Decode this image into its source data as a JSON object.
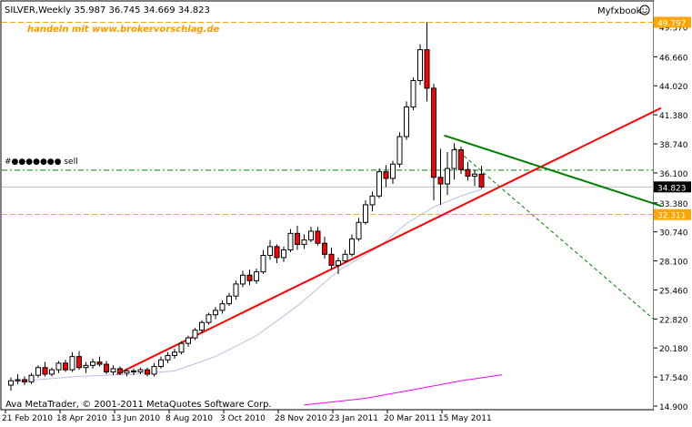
{
  "header": {
    "title": "SILVER,Weekly  35.987 36.745 34.669 34.823",
    "brand": "Myfxbook",
    "watermark": "handeln mit www.brokervorschlag.de",
    "footer": "Ava MetaTrader, © 2001-2011 MetaQuotes Software Corp."
  },
  "chart_data": {
    "type": "candlestick",
    "symbol": "SILVER",
    "timeframe": "Weekly",
    "ohlc_last": {
      "open": 35.987,
      "high": 36.745,
      "low": 34.669,
      "close": 34.823
    },
    "y_ticks": [
      "49.370",
      "46.660",
      "44.020",
      "41.380",
      "38.740",
      "36.100",
      "33.380",
      "30.740",
      "28.100",
      "25.460",
      "22.820",
      "20.180",
      "17.540",
      "14.900"
    ],
    "x_labels": [
      "21 Feb 2010",
      "18 Apr 2010",
      "13 Jun 2010",
      "8 Aug 2010",
      "3 Oct 2010",
      "28 Nov 2010",
      "23 Jan 2011",
      "20 Mar 2011",
      "15 May 2011"
    ],
    "ylim": [
      14.9,
      50.0
    ],
    "price_labels": [
      {
        "value": 49.797,
        "label": "49.797",
        "color": "#ffa500"
      },
      {
        "value": 34.823,
        "label": "34.823",
        "color": "#000000"
      },
      {
        "value": 32.311,
        "label": "32.311",
        "color": "#ffa500"
      }
    ],
    "order_label": "#●●●●●●● sell",
    "candles": [
      [
        0,
        16.8,
        17.5,
        16.3,
        17.2
      ],
      [
        1,
        17.2,
        17.8,
        16.9,
        17.3
      ],
      [
        2,
        17.3,
        17.6,
        16.8,
        17.1
      ],
      [
        3,
        17.1,
        17.9,
        16.9,
        17.7
      ],
      [
        4,
        17.7,
        18.6,
        17.5,
        18.4
      ],
      [
        5,
        18.4,
        18.9,
        17.6,
        17.8
      ],
      [
        6,
        17.8,
        18.4,
        17.6,
        18.2
      ],
      [
        7,
        18.2,
        19.0,
        17.9,
        18.8
      ],
      [
        8,
        18.8,
        19.1,
        18.0,
        18.2
      ],
      [
        9,
        18.2,
        19.8,
        18.0,
        19.4
      ],
      [
        10,
        19.4,
        19.9,
        18.2,
        18.4
      ],
      [
        11,
        18.4,
        18.9,
        17.9,
        18.6
      ],
      [
        12,
        18.6,
        19.2,
        18.3,
        18.9
      ],
      [
        13,
        18.9,
        19.4,
        18.5,
        18.7
      ],
      [
        14,
        18.7,
        19.0,
        17.8,
        18.0
      ],
      [
        15,
        18.0,
        18.6,
        17.7,
        18.3
      ],
      [
        16,
        18.3,
        18.5,
        17.7,
        17.9
      ],
      [
        17,
        17.9,
        18.3,
        17.6,
        18.1
      ],
      [
        18,
        18.1,
        18.3,
        17.7,
        18.0
      ],
      [
        19,
        18.0,
        18.4,
        17.8,
        18.2
      ],
      [
        20,
        18.2,
        18.4,
        17.6,
        17.8
      ],
      [
        21,
        17.8,
        18.8,
        17.6,
        18.5
      ],
      [
        22,
        18.5,
        19.4,
        18.3,
        19.1
      ],
      [
        23,
        19.1,
        19.8,
        18.8,
        19.5
      ],
      [
        24,
        19.5,
        20.1,
        19.2,
        19.8
      ],
      [
        25,
        19.8,
        20.8,
        19.6,
        20.6
      ],
      [
        26,
        20.6,
        21.3,
        20.3,
        21.1
      ],
      [
        27,
        21.1,
        22.0,
        20.9,
        21.8
      ],
      [
        28,
        21.8,
        22.7,
        21.5,
        22.5
      ],
      [
        29,
        22.5,
        23.4,
        22.3,
        23.2
      ],
      [
        30,
        23.2,
        23.9,
        22.8,
        23.6
      ],
      [
        31,
        23.6,
        24.5,
        23.3,
        24.2
      ],
      [
        32,
        24.2,
        25.2,
        24.0,
        24.9
      ],
      [
        33,
        24.9,
        26.3,
        24.6,
        26.0
      ],
      [
        34,
        26.0,
        27.2,
        25.7,
        26.8
      ],
      [
        35,
        26.8,
        27.3,
        25.9,
        26.3
      ],
      [
        36,
        26.3,
        27.4,
        26.0,
        27.1
      ],
      [
        37,
        27.1,
        29.1,
        26.9,
        28.6
      ],
      [
        38,
        28.6,
        30.0,
        28.2,
        29.4
      ],
      [
        39,
        29.4,
        29.6,
        27.9,
        28.4
      ],
      [
        40,
        28.4,
        29.4,
        28.0,
        29.1
      ],
      [
        41,
        29.1,
        31.0,
        28.9,
        30.6
      ],
      [
        42,
        30.6,
        31.3,
        29.1,
        29.6
      ],
      [
        43,
        29.6,
        30.5,
        29.2,
        30.0
      ],
      [
        44,
        30.0,
        31.2,
        29.8,
        30.8
      ],
      [
        45,
        30.8,
        31.2,
        29.5,
        29.7
      ],
      [
        46,
        29.7,
        30.3,
        28.3,
        28.7
      ],
      [
        47,
        28.7,
        29.3,
        27.3,
        27.7
      ],
      [
        48,
        27.7,
        28.4,
        26.9,
        28.1
      ],
      [
        49,
        28.1,
        29.1,
        27.9,
        28.7
      ],
      [
        50,
        28.7,
        30.5,
        28.5,
        30.1
      ],
      [
        51,
        30.1,
        32.0,
        29.9,
        31.6
      ],
      [
        52,
        31.6,
        33.6,
        31.4,
        33.2
      ],
      [
        53,
        33.2,
        34.4,
        32.6,
        34.0
      ],
      [
        54,
        34.0,
        36.5,
        33.8,
        36.2
      ],
      [
        55,
        36.2,
        36.8,
        34.8,
        35.6
      ],
      [
        56,
        35.6,
        37.2,
        35.1,
        36.9
      ],
      [
        57,
        36.9,
        39.8,
        36.6,
        39.4
      ],
      [
        58,
        39.4,
        42.6,
        39.1,
        42.1
      ],
      [
        59,
        42.1,
        44.8,
        41.8,
        44.5
      ],
      [
        60,
        44.5,
        47.8,
        44.1,
        47.3
      ],
      [
        61,
        47.3,
        49.8,
        42.6,
        43.8
      ],
      [
        62,
        43.8,
        44.2,
        33.6,
        35.7
      ],
      [
        63,
        35.7,
        38.3,
        33.2,
        35.1
      ],
      [
        64,
        35.1,
        38.0,
        34.1,
        36.5
      ],
      [
        65,
        36.5,
        38.8,
        35.5,
        38.2
      ],
      [
        66,
        38.2,
        38.5,
        36.0,
        36.4
      ],
      [
        67,
        36.4,
        37.1,
        35.4,
        35.8
      ],
      [
        68,
        35.8,
        36.4,
        34.9,
        35.987
      ],
      [
        69,
        35.987,
        36.745,
        34.669,
        34.823
      ]
    ],
    "ma_slow": [
      [
        65,
        17.55
      ],
      [
        69,
        17.75
      ]
    ],
    "trendlines": [
      {
        "name": "support-trendline",
        "color": "#ff0000",
        "from": [
          15,
          17.8
        ],
        "to": [
          90,
          42.0
        ]
      },
      {
        "name": "resistance-trendline",
        "color": "#008000",
        "from": [
          63,
          39.5
        ],
        "to": [
          90,
          33.1
        ]
      }
    ]
  }
}
